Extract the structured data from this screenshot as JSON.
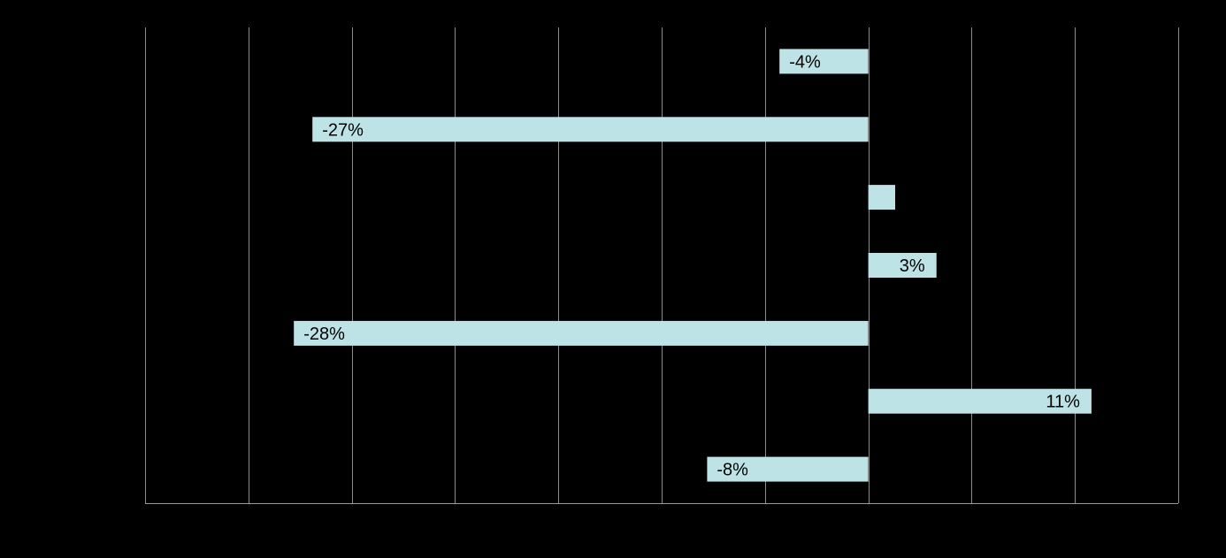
{
  "chart_data": {
    "type": "bar",
    "orientation": "horizontal",
    "values": [
      -4.3,
      -26.9,
      1.3,
      3.3,
      -27.8,
      10.8,
      -7.8
    ],
    "data_labels": [
      "-4%",
      "-27%",
      "",
      "3%",
      "-28%",
      "11%",
      "-8%"
    ],
    "xlim": [
      -35,
      15
    ],
    "x_gridline_step": 5,
    "grid": true,
    "legend": "none",
    "title": "",
    "xlabel": "",
    "ylabel": ""
  },
  "colors": {
    "background": "#000000",
    "bar_fill": "#bde3e7",
    "gridline": "#8c8c8c",
    "axis": "#9a9a9a",
    "label_text": "#000000"
  }
}
